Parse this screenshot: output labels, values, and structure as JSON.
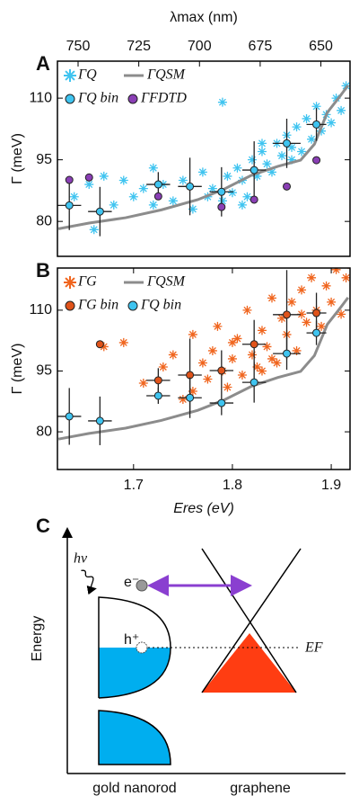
{
  "chart_data": [
    {
      "type": "scatter",
      "panel_label": "A",
      "ylabel": "Γ (meV)",
      "x2label": "λmax (nm)",
      "xlim": [
        1.623,
        1.919
      ],
      "ylim": [
        71.5,
        119
      ],
      "yticks": [
        80,
        95,
        110
      ],
      "x2lim": [
        758.5,
        638
      ],
      "x2ticks": [
        750,
        725,
        700,
        675,
        650
      ],
      "series": [
        {
          "name": "ΓQ",
          "color": "#3fc4f0",
          "marker": "asterisk",
          "x": [
            1.64,
            1.655,
            1.66,
            1.67,
            1.68,
            1.69,
            1.7,
            1.71,
            1.72,
            1.73,
            1.74,
            1.75,
            1.76,
            1.77,
            1.775,
            1.78,
            1.79,
            1.795,
            1.8,
            1.805,
            1.81,
            1.815,
            1.82,
            1.825,
            1.83,
            1.835,
            1.84,
            1.845,
            1.85,
            1.855,
            1.86,
            1.865,
            1.87,
            1.875,
            1.88,
            1.885,
            1.89,
            1.895,
            1.9,
            1.905,
            1.91,
            1.915,
            1.79,
            1.83,
            1.86,
            1.72,
            1.81
          ],
          "values": [
            86,
            89,
            78,
            91,
            84,
            90,
            86,
            88,
            84,
            89,
            85,
            90,
            83,
            92,
            86,
            88,
            85,
            91,
            87,
            93,
            90,
            86,
            95,
            91,
            97,
            94,
            92,
            99,
            96,
            101,
            98,
            103,
            97,
            105,
            100,
            108,
            102,
            106,
            104,
            110,
            107,
            113,
            109,
            99,
            95,
            93,
            84
          ]
        },
        {
          "name": "ΓQSM",
          "color": "#8c8c8c",
          "marker": "line",
          "x": [
            1.624,
            1.655,
            1.692,
            1.728,
            1.765,
            1.792,
            1.819,
            1.846,
            1.869,
            1.883,
            1.896,
            1.908,
            1.917
          ],
          "values": [
            78.2,
            79.6,
            80.9,
            82.8,
            85.3,
            87.9,
            91.2,
            93.4,
            94.9,
            98.8,
            106.5,
            110.2,
            113.1
          ]
        },
        {
          "name": "ΓQ bin",
          "color": "#3fc4f0",
          "marker": "circle",
          "x": [
            1.635,
            1.666,
            1.725,
            1.757,
            1.789,
            1.822,
            1.855,
            1.885
          ],
          "values": [
            83.9,
            82.4,
            89,
            88.5,
            87.2,
            92.5,
            99,
            103.6
          ],
          "xerr": [
            0.012,
            0.012,
            0.012,
            0.012,
            0.012,
            0.012,
            0.014,
            0.01
          ],
          "yerr": [
            6,
            6,
            3,
            7,
            6,
            7,
            6,
            4
          ]
        },
        {
          "name": "ΓFDTD",
          "color": "#8a3fb5",
          "marker": "circle",
          "x": [
            1.635,
            1.655,
            1.725,
            1.789,
            1.822,
            1.855,
            1.885
          ],
          "values": [
            90.1,
            90.7,
            86.1,
            83.5,
            85.3,
            88.5,
            94.9
          ]
        }
      ]
    },
    {
      "type": "scatter",
      "panel_label": "B",
      "ylabel": "Γ (meV)",
      "xlabel": "Eres (eV)",
      "xlim": [
        1.623,
        1.919
      ],
      "ylim": [
        70.7,
        120.4
      ],
      "yticks": [
        80,
        95,
        110
      ],
      "xticks": [
        1.7,
        1.8,
        1.9
      ],
      "series": [
        {
          "name": "ΓG",
          "color": "#f0651e",
          "marker": "asterisk",
          "x": [
            1.67,
            1.69,
            1.71,
            1.73,
            1.74,
            1.75,
            1.76,
            1.77,
            1.775,
            1.78,
            1.785,
            1.79,
            1.795,
            1.8,
            1.805,
            1.81,
            1.815,
            1.82,
            1.825,
            1.83,
            1.835,
            1.84,
            1.845,
            1.85,
            1.855,
            1.86,
            1.865,
            1.87,
            1.875,
            1.88,
            1.885,
            1.89,
            1.895,
            1.9,
            1.905,
            1.91,
            1.915,
            1.92,
            1.8,
            1.84,
            1.87,
            1.76,
            1.83
          ],
          "values": [
            101,
            102,
            92,
            96,
            99,
            88,
            104,
            97,
            93,
            100,
            106,
            95,
            91,
            98,
            103,
            94,
            110,
            99,
            96,
            105,
            101,
            113,
            97,
            108,
            104,
            112,
            100,
            115,
            107,
            118,
            110,
            106,
            116,
            112,
            120,
            109,
            118,
            121,
            102,
            98,
            109,
            90,
            95
          ]
        },
        {
          "name": "ΓQSM",
          "color": "#8c8c8c",
          "marker": "line",
          "x": [
            1.624,
            1.655,
            1.692,
            1.728,
            1.765,
            1.792,
            1.819,
            1.846,
            1.869,
            1.883,
            1.896,
            1.908,
            1.917
          ],
          "values": [
            78.2,
            79.6,
            80.9,
            82.8,
            85.3,
            87.9,
            91.2,
            93.4,
            94.9,
            98.8,
            106.5,
            110.2,
            113.1
          ]
        },
        {
          "name": "ΓG bin",
          "color": "#e0531a",
          "marker": "circle",
          "x": [
            1.666,
            1.725,
            1.757,
            1.789,
            1.822,
            1.855,
            1.885
          ],
          "values": [
            101.6,
            92.7,
            94,
            95.1,
            101.6,
            108.9,
            109.3
          ],
          "xerr": [
            null,
            0.012,
            0.012,
            0.012,
            0.012,
            0.014,
            0.01
          ],
          "yerr": [
            null,
            3,
            9,
            5,
            6,
            11,
            5
          ]
        },
        {
          "name": "ΓQ bin",
          "color": "#3fc4f0",
          "marker": "circle",
          "x": [
            1.635,
            1.666,
            1.725,
            1.757,
            1.789,
            1.822,
            1.855,
            1.885
          ],
          "values": [
            83.8,
            82.7,
            88.9,
            88.4,
            87.1,
            92.2,
            99.3,
            104.4
          ],
          "xerr": [
            0.012,
            0.012,
            0.012,
            0.012,
            0.012,
            0.012,
            0.014,
            0.01
          ],
          "yerr": [
            7,
            6,
            2,
            5,
            3,
            5,
            4,
            3
          ]
        }
      ]
    }
  ],
  "diagram": {
    "panel_label": "C",
    "y_axis": "Energy",
    "photon": "hν",
    "electron": "e⁻",
    "hole": "h⁺",
    "fermi": "EF",
    "gold": "gold nanorod",
    "graphene": "graphene"
  }
}
